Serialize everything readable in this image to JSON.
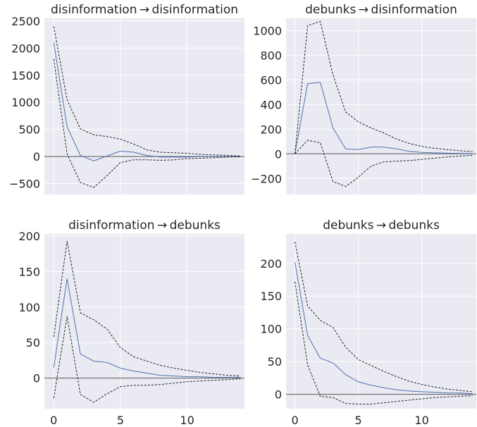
{
  "chart_data": [
    {
      "type": "line",
      "title": "disinformation → disinformation",
      "x": [
        0,
        1,
        2,
        3,
        4,
        5,
        6,
        7,
        8,
        9,
        10,
        11,
        12,
        13,
        14
      ],
      "series": [
        {
          "role": "irf",
          "values": [
            2100,
            550,
            20,
            -80,
            10,
            100,
            80,
            20,
            -10,
            -10,
            -10,
            0,
            0,
            0,
            0
          ]
        },
        {
          "role": "upper",
          "values": [
            2400,
            1050,
            510,
            400,
            370,
            320,
            230,
            120,
            80,
            70,
            60,
            40,
            30,
            20,
            10
          ]
        },
        {
          "role": "lower",
          "values": [
            1800,
            50,
            -480,
            -570,
            -350,
            -110,
            -60,
            -60,
            -70,
            -60,
            -40,
            -30,
            -20,
            -10,
            -5
          ]
        }
      ],
      "ylim": [
        -700,
        2550
      ],
      "xlim": [
        -0.7,
        14.3
      ],
      "yticks": [
        -500,
        0,
        500,
        1000,
        1500,
        2000,
        2500
      ],
      "ytick_labels": [
        "−500",
        "0",
        "500",
        "1000",
        "1500",
        "2000",
        "2500"
      ],
      "xticks": [
        0,
        5,
        10
      ],
      "xtick_labels": [],
      "grid": true
    },
    {
      "type": "line",
      "title": "debunks → disinformation",
      "x": [
        0,
        1,
        2,
        3,
        4,
        5,
        6,
        7,
        8,
        9,
        10,
        11,
        12,
        13,
        14
      ],
      "series": [
        {
          "role": "irf",
          "values": [
            0,
            570,
            580,
            210,
            40,
            35,
            55,
            55,
            40,
            20,
            12,
            8,
            5,
            3,
            2
          ]
        },
        {
          "role": "upper",
          "values": [
            0,
            1040,
            1075,
            640,
            340,
            260,
            210,
            170,
            120,
            85,
            60,
            45,
            35,
            25,
            18
          ]
        },
        {
          "role": "lower",
          "values": [
            0,
            110,
            90,
            -225,
            -265,
            -190,
            -100,
            -65,
            -60,
            -55,
            -45,
            -35,
            -25,
            -18,
            -12
          ]
        }
      ],
      "ylim": [
        -330,
        1100
      ],
      "xlim": [
        -0.7,
        14.3
      ],
      "yticks": [
        -200,
        0,
        200,
        400,
        600,
        800,
        1000
      ],
      "ytick_labels": [
        "−200",
        "0",
        "200",
        "400",
        "600",
        "800",
        "1000"
      ],
      "xticks": [
        0,
        5,
        10
      ],
      "xtick_labels": [],
      "grid": true
    },
    {
      "type": "line",
      "title": "disinformation → debunks",
      "x": [
        0,
        1,
        2,
        3,
        4,
        5,
        6,
        7,
        8,
        9,
        10,
        11,
        12,
        13,
        14
      ],
      "series": [
        {
          "role": "irf",
          "values": [
            15,
            140,
            34,
            24,
            22,
            14,
            10,
            7,
            4,
            3,
            2,
            2,
            1,
            1,
            1
          ]
        },
        {
          "role": "upper",
          "values": [
            58,
            193,
            92,
            82,
            69,
            43,
            30,
            24,
            18,
            14,
            11,
            8,
            6,
            4,
            3
          ]
        },
        {
          "role": "lower",
          "values": [
            -28,
            87,
            -23,
            -34,
            -22,
            -12,
            -10,
            -10,
            -9,
            -7,
            -5,
            -4,
            -3,
            -2,
            -1
          ]
        }
      ],
      "ylim": [
        -43,
        203
      ],
      "xlim": [
        -0.7,
        14.3
      ],
      "yticks": [
        0,
        50,
        100,
        150,
        200
      ],
      "ytick_labels": [
        "0",
        "50",
        "100",
        "150",
        "200"
      ],
      "xticks": [
        0,
        5,
        10
      ],
      "xtick_labels": [
        "0",
        "5",
        "10"
      ],
      "grid": true
    },
    {
      "type": "line",
      "title": "debunks → debunks",
      "x": [
        0,
        1,
        2,
        3,
        4,
        5,
        6,
        7,
        8,
        9,
        10,
        11,
        12,
        13,
        14
      ],
      "series": [
        {
          "role": "irf",
          "values": [
            202,
            90,
            55,
            48,
            30,
            19,
            14,
            10,
            7,
            5,
            4,
            3,
            2,
            2,
            1
          ]
        },
        {
          "role": "upper",
          "values": [
            233,
            135,
            113,
            102,
            72,
            53,
            44,
            35,
            27,
            20,
            15,
            11,
            8,
            6,
            4
          ]
        },
        {
          "role": "lower",
          "values": [
            172,
            45,
            -3,
            -5,
            -14,
            -15,
            -15,
            -13,
            -11,
            -9,
            -7,
            -5,
            -4,
            -3,
            -2
          ]
        }
      ],
      "ylim": [
        -22,
        245
      ],
      "xlim": [
        -0.7,
        14.3
      ],
      "yticks": [
        0,
        50,
        100,
        150,
        200
      ],
      "ytick_labels": [
        "0",
        "50",
        "100",
        "150",
        "200"
      ],
      "xticks": [
        0,
        5,
        10
      ],
      "xtick_labels": [
        "0",
        "5",
        "10"
      ],
      "grid": true
    }
  ]
}
